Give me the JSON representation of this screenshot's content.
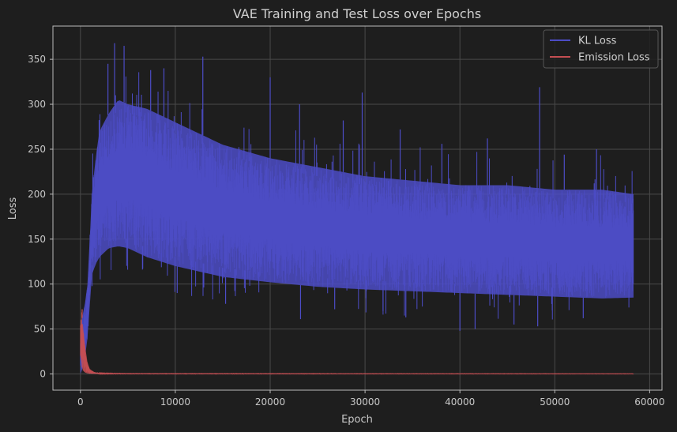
{
  "chart_data": {
    "type": "line",
    "title": "VAE Training and Test Loss over Epochs",
    "xlabel": "Epoch",
    "ylabel": "Loss",
    "xlim": [
      -2900,
      61300
    ],
    "ylim": [
      -18,
      387
    ],
    "xticks": [
      0,
      10000,
      20000,
      30000,
      40000,
      50000,
      60000
    ],
    "xtick_labels": [
      "0",
      "10000",
      "20000",
      "30000",
      "40000",
      "50000",
      "60000"
    ],
    "yticks": [
      0,
      50,
      100,
      150,
      200,
      250,
      300,
      350
    ],
    "ytick_labels": [
      "0",
      "50",
      "100",
      "150",
      "200",
      "250",
      "300",
      "350"
    ],
    "grid": true,
    "legend_position": "top-right",
    "series": [
      {
        "name": "KL Loss",
        "color": "#4c4cc6",
        "envelope": {
          "x": [
            0,
            150,
            300,
            500,
            700,
            900,
            1000,
            1200,
            1600,
            2000,
            3000,
            4000,
            5000,
            7000,
            10000,
            15000,
            20000,
            25000,
            30000,
            35000,
            40000,
            45000,
            50000,
            55000,
            58300
          ],
          "typ_low": [
            0,
            2,
            10,
            20,
            35,
            60,
            80,
            110,
            122,
            130,
            140,
            142,
            140,
            130,
            120,
            108,
            102,
            97,
            94,
            92,
            90,
            88,
            86,
            84,
            85
          ],
          "typ_high": [
            50,
            60,
            70,
            80,
            95,
            120,
            160,
            200,
            240,
            270,
            290,
            305,
            300,
            295,
            280,
            255,
            240,
            230,
            220,
            215,
            210,
            210,
            205,
            205,
            200
          ]
        },
        "peaks": [
          [
            3600,
            368
          ],
          [
            4600,
            365
          ],
          [
            12900,
            353
          ],
          [
            8800,
            340
          ],
          [
            7400,
            338
          ],
          [
            2900,
            345
          ],
          [
            29700,
            313
          ],
          [
            48400,
            319
          ],
          [
            20000,
            330
          ],
          [
            23100,
            300
          ],
          [
            27700,
            282
          ],
          [
            42900,
            262
          ],
          [
            38100,
            256
          ],
          [
            54400,
            250
          ],
          [
            33700,
            272
          ],
          [
            51000,
            244
          ]
        ],
        "dips": [
          [
            40000,
            48
          ],
          [
            41600,
            50
          ],
          [
            23200,
            61
          ],
          [
            48200,
            53
          ],
          [
            34300,
            63
          ],
          [
            26800,
            72
          ],
          [
            31900,
            70
          ],
          [
            45700,
            55
          ],
          [
            53000,
            62
          ],
          [
            15300,
            78
          ],
          [
            10200,
            90
          ]
        ]
      },
      {
        "name": "Emission Loss",
        "color": "#c44e52",
        "envelope": {
          "x": [
            0,
            100,
            200,
            300,
            400,
            600,
            800,
            1000,
            1500,
            2000,
            5000,
            58300
          ],
          "typ_low": [
            20,
            10,
            5,
            3,
            2,
            1,
            0.5,
            0.3,
            0.2,
            0.1,
            0.05,
            0.02
          ],
          "typ_high": [
            55,
            72,
            60,
            50,
            40,
            20,
            10,
            5,
            2,
            1,
            0.5,
            0.3
          ]
        },
        "peaks": [
          [
            180,
            72
          ]
        ],
        "dips": []
      }
    ]
  }
}
